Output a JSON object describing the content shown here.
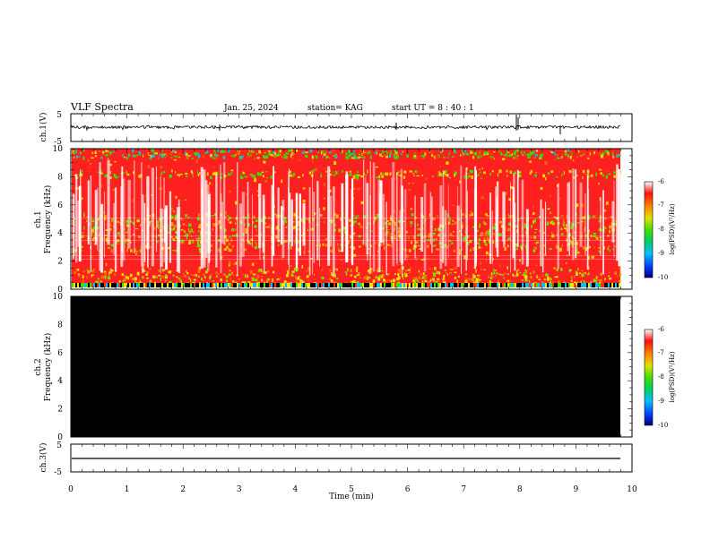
{
  "header": {
    "title": "VLF Spectra",
    "date": "Jan. 25, 2024",
    "station": "station= KAG",
    "start": "start  UT =   8 : 40 : 1"
  },
  "chart_data": [
    {
      "type": "line",
      "name": "ch1-waveform",
      "ylabel": "ch.1(V)",
      "ylim": [
        -5,
        5
      ],
      "y_ticks": [
        "5",
        "-5"
      ],
      "xlim": [
        0,
        10
      ],
      "baseline": 0.0,
      "color": "#000000"
    },
    {
      "type": "heatmap",
      "name": "ch1-spectrogram",
      "ylabel": "ch.1\nFrequency (kHz)",
      "ylabel_lines": [
        "ch.1",
        "Frequency (kHz)"
      ],
      "ylim": [
        0,
        10
      ],
      "y_ticks": [
        "0",
        "2",
        "4",
        "6",
        "8",
        "10"
      ],
      "xlim": [
        0,
        9.83
      ],
      "colorbar": {
        "label": "log(PSD)(V²/Hz)",
        "range": [
          -10,
          -6
        ],
        "ticks": [
          "-6",
          "-7",
          "-8",
          "-9",
          "-10"
        ]
      }
    },
    {
      "type": "heatmap",
      "name": "ch2-spectrogram",
      "ylabel": "ch.2\nFrequency (kHz)",
      "ylabel_lines": [
        "ch.2",
        "Frequency (kHz)"
      ],
      "ylim": [
        0,
        10
      ],
      "y_ticks": [
        "0",
        "2",
        "4",
        "6",
        "8",
        "10"
      ],
      "xlim": [
        0,
        9.83
      ],
      "fill": "#000000",
      "colorbar": {
        "label": "log(PSD)(V²/Hz)",
        "range": [
          -10,
          -6
        ],
        "ticks": [
          "-6",
          "-7",
          "-8",
          "-9",
          "-10"
        ]
      }
    },
    {
      "type": "line",
      "name": "ch3-waveform",
      "ylabel": "ch.3(V)",
      "ylim": [
        -5,
        5
      ],
      "y_ticks": [
        "5",
        "-5"
      ],
      "xlim": [
        0,
        10
      ],
      "baseline": 0.0,
      "color": "#000000"
    }
  ],
  "xaxis": {
    "label": "Time (min)",
    "ticks": [
      "0",
      "1",
      "2",
      "3",
      "4",
      "5",
      "6",
      "7",
      "8",
      "9",
      "10"
    ]
  }
}
